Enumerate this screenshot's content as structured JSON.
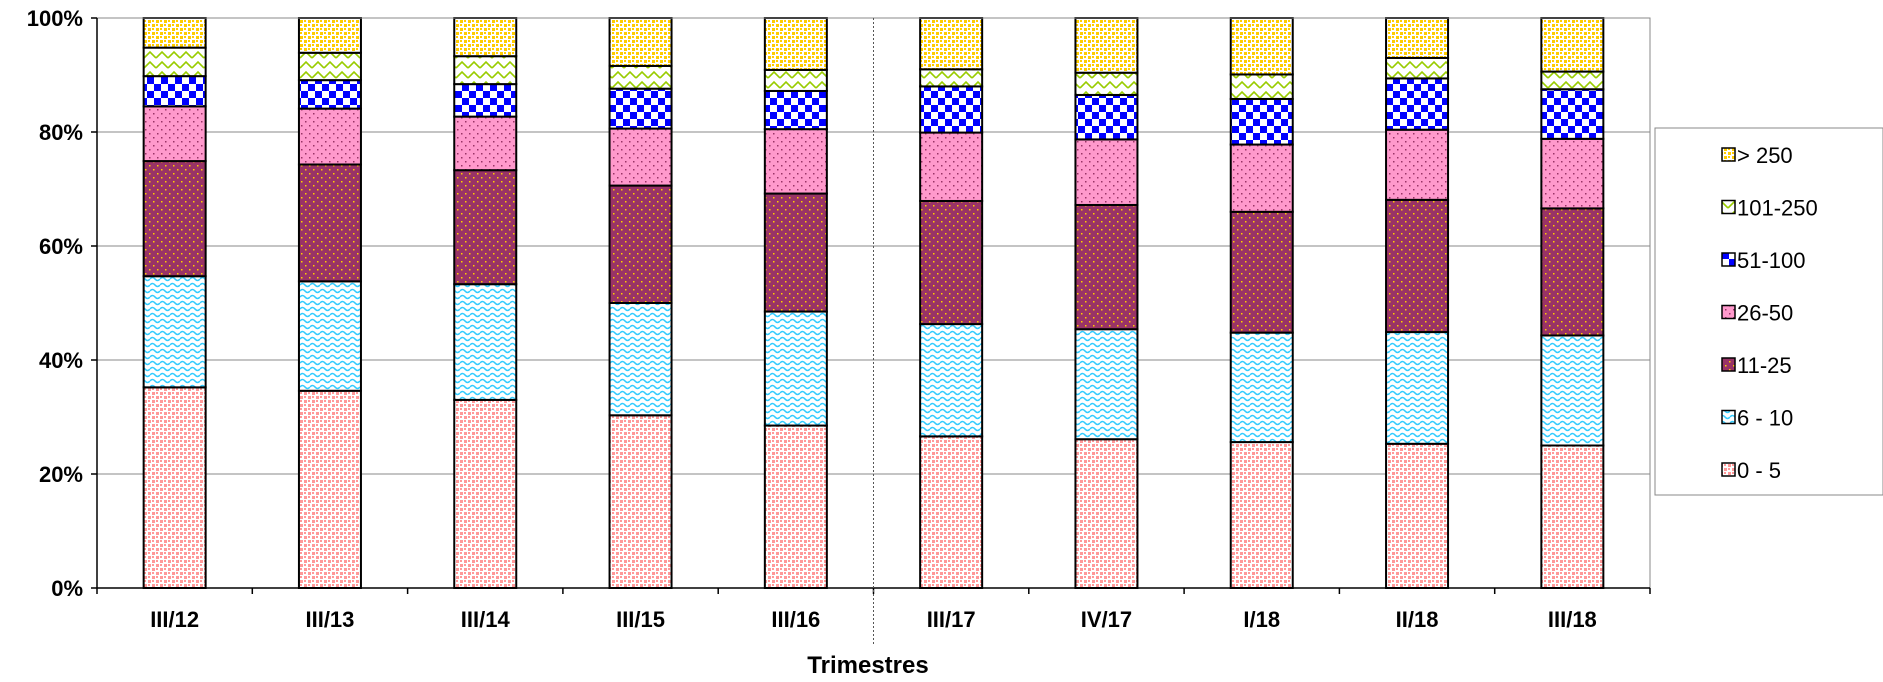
{
  "chart_data": {
    "type": "bar",
    "stacked": true,
    "percent": true,
    "title": "",
    "xlabel": "Trimestres",
    "ylabel": "",
    "ylim": [
      0,
      100
    ],
    "yticks": [
      "0%",
      "20%",
      "40%",
      "60%",
      "80%",
      "100%"
    ],
    "categories": [
      "III/12",
      "III/13",
      "III/14",
      "III/15",
      "III/16",
      "III/17",
      "IV/17",
      "I/18",
      "II/18",
      "III/18"
    ],
    "series": [
      {
        "name": "0 - 5",
        "color": "#ff9999",
        "pattern": "dots-dense",
        "values": [
          35.2,
          34.6,
          33.0,
          30.3,
          28.5,
          26.6,
          26.1,
          25.6,
          25.3,
          25.0
        ]
      },
      {
        "name": "6 - 10",
        "color": "#33ccff",
        "pattern": "wave",
        "values": [
          19.5,
          19.2,
          20.3,
          19.7,
          20.0,
          19.7,
          19.3,
          19.2,
          19.6,
          19.3
        ]
      },
      {
        "name": "11-25",
        "color": "#993366",
        "pattern": "dots-sparse",
        "values": [
          20.2,
          20.5,
          20.0,
          20.6,
          20.7,
          21.6,
          21.8,
          21.2,
          23.2,
          22.3
        ]
      },
      {
        "name": "26-50",
        "color": "#ff99cc",
        "pattern": "dots-sparse",
        "values": [
          9.6,
          9.8,
          9.4,
          10.0,
          11.3,
          12.0,
          11.5,
          11.8,
          12.3,
          12.2
        ]
      },
      {
        "name": "51-100",
        "color": "#0000ff",
        "pattern": "checker",
        "values": [
          5.3,
          5.0,
          5.7,
          7.0,
          6.7,
          8.1,
          7.8,
          8.0,
          9.0,
          8.7
        ]
      },
      {
        "name": "101-250",
        "color": "#99cc00",
        "pattern": "zigzag",
        "values": [
          5.0,
          4.8,
          4.9,
          4.0,
          3.7,
          3.0,
          3.9,
          4.3,
          3.6,
          3.1
        ]
      },
      {
        "name": "> 250",
        "color": "#ffcc00",
        "pattern": "dots-dense",
        "values": [
          5.2,
          6.1,
          6.7,
          8.4,
          9.1,
          9.0,
          9.6,
          9.9,
          7.0,
          9.4
        ]
      }
    ],
    "legend_position": "right",
    "legend_order": [
      "> 250",
      "101-250",
      "51-100",
      "26-50",
      "11-25",
      "6 - 10",
      "0 - 5"
    ],
    "divider_after_category": "III/16",
    "grid": true
  }
}
